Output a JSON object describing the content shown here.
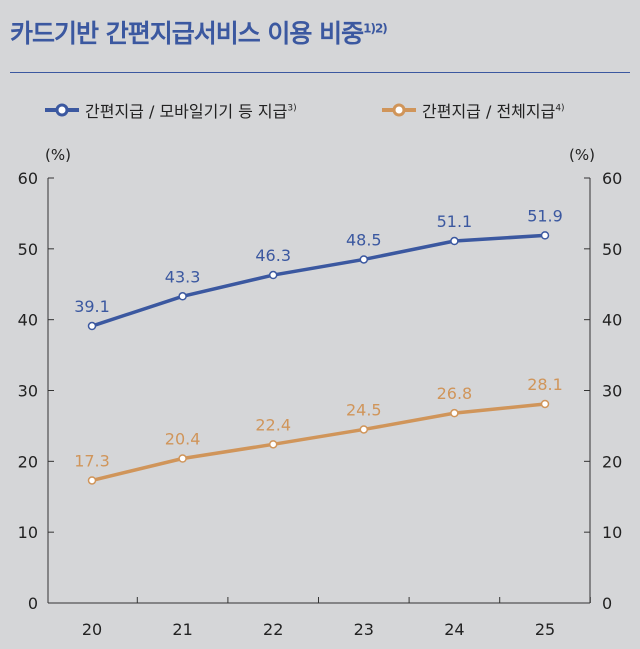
{
  "title": "카드기반 간편지급서비스 이용 비중",
  "title_note": "1)2)",
  "chart_data": {
    "type": "line",
    "categories": [
      "20",
      "21",
      "22",
      "23",
      "24",
      "25"
    ],
    "ylim": [
      0,
      60
    ],
    "yticks": [
      0,
      10,
      20,
      30,
      40,
      50,
      60
    ],
    "ylabel_left": "(%)",
    "ylabel_right": "(%)",
    "grid": false,
    "legend_position": "top",
    "series": [
      {
        "name": "간편지급 / 모바일기기 등 지급",
        "note": "3)",
        "color": "#3b58a0",
        "values": [
          39.1,
          43.3,
          46.3,
          48.5,
          51.1,
          51.9
        ]
      },
      {
        "name": "간편지급 / 전체지급",
        "note": "4)",
        "color": "#d0955a",
        "values": [
          17.3,
          20.4,
          22.4,
          24.5,
          26.8,
          28.1
        ]
      }
    ]
  }
}
